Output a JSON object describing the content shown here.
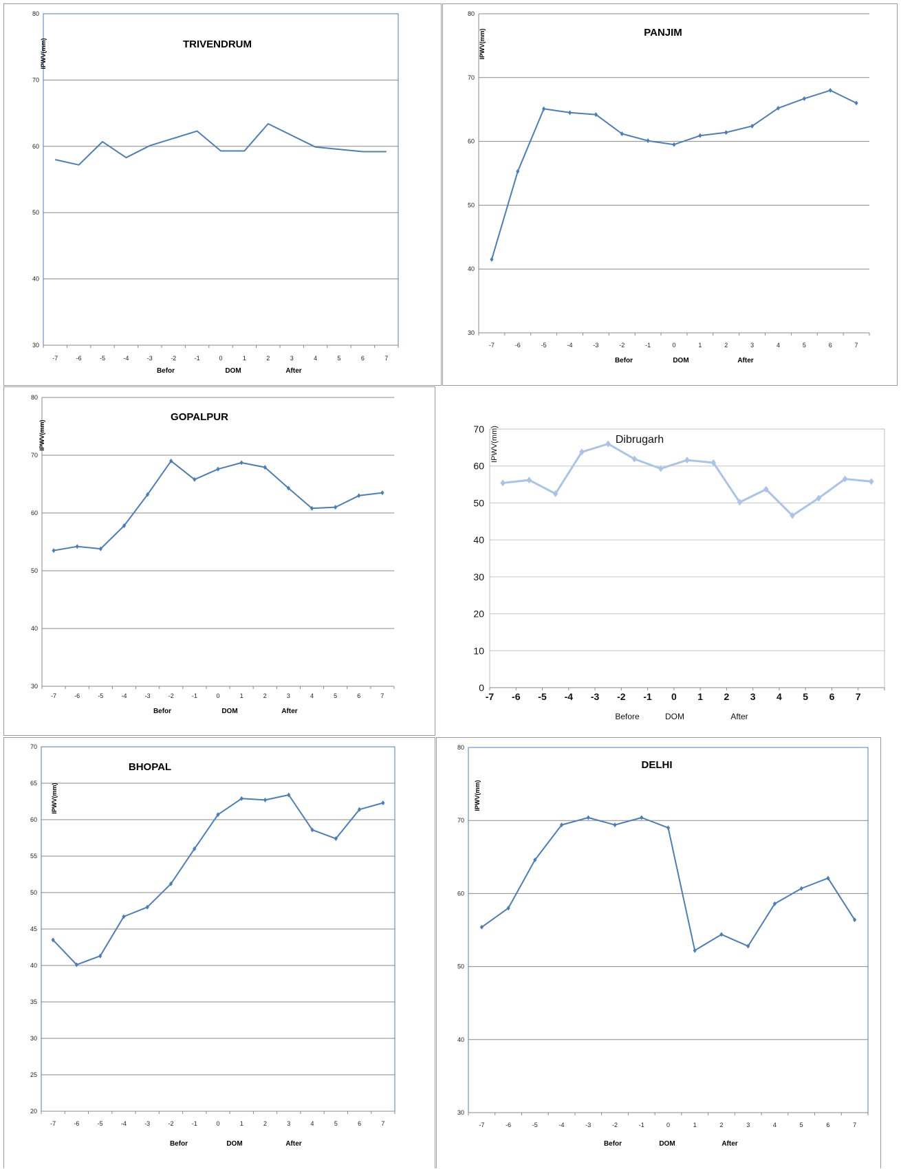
{
  "chart_data": [
    {
      "id": "trivendrum",
      "type": "line",
      "title": "TRIVENDRUM",
      "ylabel": "IPWV(mm)",
      "x_groups": [
        "Befor",
        "DOM",
        "After"
      ],
      "ylim": [
        30,
        80
      ],
      "yticks": [
        30,
        40,
        50,
        60,
        70,
        80
      ],
      "x": [
        -7,
        -6,
        -5,
        -4,
        -3,
        -2,
        -1,
        0,
        1,
        2,
        3,
        4,
        5,
        6,
        7
      ],
      "series": [
        {
          "values": [
            58.0,
            57.2,
            60.7,
            58.3,
            60.1,
            61.2,
            62.3,
            59.3,
            59.3,
            63.4,
            null,
            59.9,
            null,
            59.2,
            59.2
          ],
          "color": "#4a7ebb",
          "markers": false
        }
      ],
      "grid": true
    },
    {
      "id": "panjim",
      "type": "line",
      "title": "PANJIM",
      "ylabel": "IPWV(mm)",
      "x_groups": [
        "Befor",
        "DOM",
        "After"
      ],
      "ylim": [
        30,
        80
      ],
      "yticks": [
        30,
        40,
        50,
        60,
        70,
        80
      ],
      "x": [
        -7,
        -6,
        -5,
        -4,
        -3,
        -2,
        -1,
        0,
        1,
        2,
        3,
        4,
        5,
        6,
        7
      ],
      "series": [
        {
          "values": [
            41.5,
            55.3,
            65.1,
            64.5,
            64.2,
            61.2,
            60.1,
            59.5,
            60.9,
            61.4,
            62.4,
            65.2,
            66.7,
            68.0,
            66.0
          ],
          "color": "#4a7ebb",
          "markers": true
        }
      ],
      "grid": true
    },
    {
      "id": "gopalpur",
      "type": "line",
      "title": "GOPALPUR",
      "ylabel": "IPWV(mm)",
      "x_groups": [
        "Befor",
        "DOM",
        "After"
      ],
      "ylim": [
        30,
        80
      ],
      "yticks": [
        30,
        40,
        50,
        60,
        70,
        80
      ],
      "x": [
        -7,
        -6,
        -5,
        -4,
        -3,
        -2,
        -1,
        0,
        1,
        2,
        3,
        4,
        5,
        6,
        7
      ],
      "series": [
        {
          "values": [
            53.5,
            54.2,
            53.8,
            57.8,
            63.2,
            69.0,
            65.8,
            67.6,
            68.7,
            67.9,
            64.3,
            60.8,
            61.0,
            63.0,
            63.5
          ],
          "color": "#4a7ebb",
          "markers": true
        }
      ],
      "grid": true
    },
    {
      "id": "dibrugarh",
      "type": "line",
      "title": "Dibrugarh",
      "ylabel": "IPWV(mm)",
      "x_groups": [
        "Before",
        "DOM",
        "After"
      ],
      "ylim": [
        0,
        70
      ],
      "yticks": [
        0,
        10,
        20,
        30,
        40,
        50,
        60,
        70
      ],
      "x": [
        -7,
        -6,
        -5,
        -4,
        -3,
        -2,
        -1,
        0,
        1,
        2,
        3,
        4,
        5,
        6,
        7
      ],
      "series": [
        {
          "values": [
            55.4,
            56.2,
            52.5,
            63.8,
            66.0,
            61.9,
            59.3,
            61.6,
            60.9,
            50.2,
            53.7,
            46.6,
            51.3,
            56.5,
            55.8
          ],
          "color": "#a9c4e8",
          "markers": true
        }
      ],
      "grid": true
    },
    {
      "id": "bhopal",
      "type": "line",
      "title": "BHOPAL",
      "ylabel": "IPWV(mm)",
      "x_groups": [
        "Befor",
        "DOM",
        "After"
      ],
      "ylim": [
        20,
        70
      ],
      "yticks": [
        20,
        25,
        30,
        35,
        40,
        45,
        50,
        55,
        60,
        65,
        70
      ],
      "x": [
        -7,
        -6,
        -5,
        -4,
        -3,
        -2,
        -1,
        0,
        1,
        2,
        3,
        4,
        5,
        6,
        7
      ],
      "series": [
        {
          "values": [
            43.5,
            40.1,
            41.3,
            46.7,
            48.0,
            51.2,
            56.0,
            60.7,
            62.9,
            62.7,
            63.4,
            58.6,
            57.4,
            61.4,
            62.3
          ],
          "color": "#4a7ebb",
          "markers": true
        }
      ],
      "grid": true
    },
    {
      "id": "delhi",
      "type": "line",
      "title": "DELHI",
      "ylabel": "IPWV(mm)",
      "x_groups": [
        "Befor",
        "DOM",
        "After"
      ],
      "ylim": [
        30,
        80
      ],
      "yticks": [
        30,
        40,
        50,
        60,
        70,
        80
      ],
      "x": [
        -7,
        -6,
        -5,
        -4,
        -3,
        -2,
        -1,
        0,
        1,
        2,
        3,
        4,
        5,
        6,
        7
      ],
      "series": [
        {
          "values": [
            55.4,
            58.0,
            64.6,
            69.4,
            70.4,
            69.4,
            70.4,
            69.0,
            52.2,
            54.4,
            52.8,
            58.6,
            60.7,
            62.1,
            56.4
          ],
          "color": "#4a7ebb",
          "markers": true
        }
      ],
      "grid": true
    }
  ]
}
